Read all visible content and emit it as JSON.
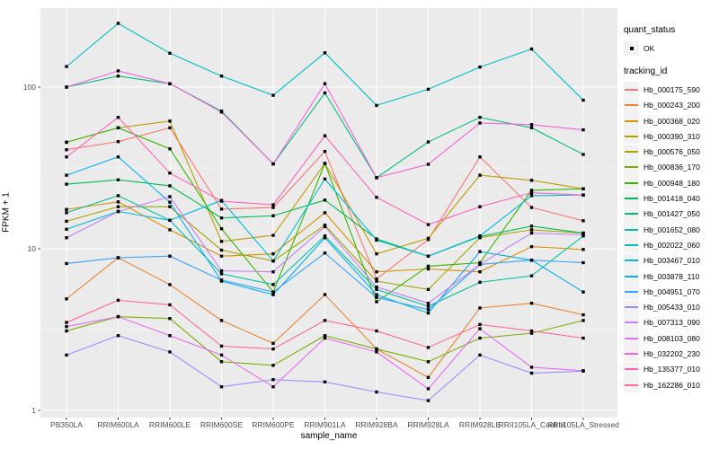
{
  "figure": {
    "panel_bg": "#EBEBEB",
    "grid_color": "#FFFFFF",
    "tick_label_color": "#4D4D4D",
    "point_color": "#000000"
  },
  "legend": {
    "quant_status_title": "quant_status",
    "quant_status_items": [
      {
        "label": "OK",
        "symbol": "black-point"
      }
    ],
    "tracking_id_title": "tracking_id"
  },
  "chart_data": {
    "type": "line",
    "title": "",
    "xlabel": "sample_name",
    "ylabel": "FPKM + 1",
    "y_scale": "log10",
    "y_ticks": [
      1,
      10,
      100
    ],
    "y_minor_ticks": [
      3.1623,
      31.623,
      316.23
    ],
    "ylim": [
      1,
      300
    ],
    "grid": true,
    "legend_position": "right",
    "point_shape": "black-square",
    "categories": [
      "PB350LA",
      "RRIM600LA",
      "RRIM600LE",
      "RRIM600SE",
      "RRIM600PE",
      "RRIM901LA",
      "RRIM928BA",
      "RRIM928LA",
      "RRIM928LE",
      "RRII105LA_Control",
      "RRII105LA_Stressed"
    ],
    "series": [
      {
        "tracking_id": "Hb_000175_590",
        "color": "#F8766D",
        "values": [
          41,
          46,
          56,
          17.6,
          18,
          40,
          6.5,
          11.4,
          37,
          18,
          14.9
        ]
      },
      {
        "tracking_id": "Hb_000243_200",
        "color": "#EA8331",
        "values": [
          4.9,
          8.8,
          6.0,
          3.6,
          2.6,
          5.2,
          2.4,
          1.6,
          4.3,
          4.6,
          3.9
        ]
      },
      {
        "tracking_id": "Hb_000368_020",
        "color": "#D89000",
        "values": [
          17.5,
          19.5,
          13.1,
          9.0,
          9.3,
          16.7,
          7.2,
          7.5,
          7.2,
          10.3,
          9.9
        ]
      },
      {
        "tracking_id": "Hb_000390_310",
        "color": "#C09B00",
        "values": [
          45.6,
          56,
          61.6,
          11.1,
          12.1,
          33.7,
          9.3,
          11.6,
          28.5,
          26.5,
          23.5
        ]
      },
      {
        "tracking_id": "Hb_000576_050",
        "color": "#A3A500",
        "values": [
          14.8,
          18.2,
          18.2,
          9.8,
          8.4,
          14,
          6.3,
          5.6,
          11.7,
          13.1,
          12.5
        ]
      },
      {
        "tracking_id": "Hb_000836_170",
        "color": "#7CAE00",
        "values": [
          3.1,
          3.8,
          3.7,
          2.0,
          1.9,
          2.9,
          2.4,
          2.0,
          2.8,
          3.0,
          3.6
        ]
      },
      {
        "tracking_id": "Hb_000948_180",
        "color": "#39B600",
        "values": [
          45.6,
          56,
          41.5,
          13.3,
          5.4,
          33.7,
          4.7,
          7.8,
          8.2,
          23.0,
          23.5
        ]
      },
      {
        "tracking_id": "Hb_001418_040",
        "color": "#00BB4E",
        "values": [
          25.1,
          26.7,
          24.5,
          15.5,
          16,
          20,
          11.5,
          9.0,
          11.9,
          13.8,
          12.5
        ]
      },
      {
        "tracking_id": "Hb_001427_050",
        "color": "#00BF7D",
        "values": [
          100,
          117,
          105,
          71,
          33.5,
          92,
          27.5,
          45.8,
          65,
          56,
          38.3
        ]
      },
      {
        "tracking_id": "Hb_001652_080",
        "color": "#00C1A3",
        "values": [
          16.7,
          21.3,
          15,
          7.0,
          6.0,
          12,
          5.6,
          4.4,
          6.2,
          6.8,
          12
        ]
      },
      {
        "tracking_id": "Hb_002022_060",
        "color": "#00BFC4",
        "values": [
          134,
          248,
          162,
          117,
          89,
          163,
          77,
          97,
          133,
          172,
          83
        ]
      },
      {
        "tracking_id": "Hb_003467_010",
        "color": "#00BAE0",
        "values": [
          13.2,
          17,
          15,
          19.9,
          8.4,
          27,
          11.3,
          9.0,
          12,
          21.3,
          21.5
        ]
      },
      {
        "tracking_id": "Hb_003878_110",
        "color": "#00B0F6",
        "values": [
          28.5,
          37,
          19.4,
          6.3,
          5.2,
          11.7,
          5.2,
          4.0,
          9.6,
          8.5,
          5.4
        ]
      },
      {
        "tracking_id": "Hb_004951_070",
        "color": "#35A2FF",
        "values": [
          8.1,
          8.8,
          9.0,
          6.4,
          5.4,
          9.4,
          5.0,
          4.2,
          8.0,
          8.5,
          8.2
        ]
      },
      {
        "tracking_id": "Hb_005433_010",
        "color": "#9590FF",
        "values": [
          2.2,
          2.9,
          2.3,
          1.4,
          1.55,
          1.5,
          1.3,
          1.15,
          2.2,
          1.7,
          1.75
        ]
      },
      {
        "tracking_id": "Hb_007313_090",
        "color": "#C77CFF",
        "values": [
          11.7,
          17,
          21,
          7.3,
          7.2,
          13.7,
          5.8,
          4.6,
          8.0,
          12.5,
          12.2
        ]
      },
      {
        "tracking_id": "Hb_008103_080",
        "color": "#E76BF3",
        "values": [
          3.3,
          3.8,
          2.9,
          2.2,
          1.4,
          2.8,
          2.3,
          1.36,
          3.2,
          1.85,
          1.76
        ]
      },
      {
        "tracking_id": "Hb_032202_230",
        "color": "#FA62DB",
        "values": [
          100,
          126,
          105,
          70,
          33.5,
          105,
          27.5,
          33.3,
          60,
          58.6,
          54.4
        ]
      },
      {
        "tracking_id": "Hb_135377_010",
        "color": "#FF62BC",
        "values": [
          37,
          65,
          29.4,
          19.7,
          18.7,
          50,
          20.8,
          14.1,
          18.2,
          22.2,
          21.5
        ]
      },
      {
        "tracking_id": "Hb_162286_010",
        "color": "#FF6A98",
        "values": [
          3.5,
          4.8,
          4.5,
          2.5,
          2.4,
          3.6,
          3.1,
          2.45,
          3.4,
          3.1,
          2.8
        ]
      }
    ]
  }
}
